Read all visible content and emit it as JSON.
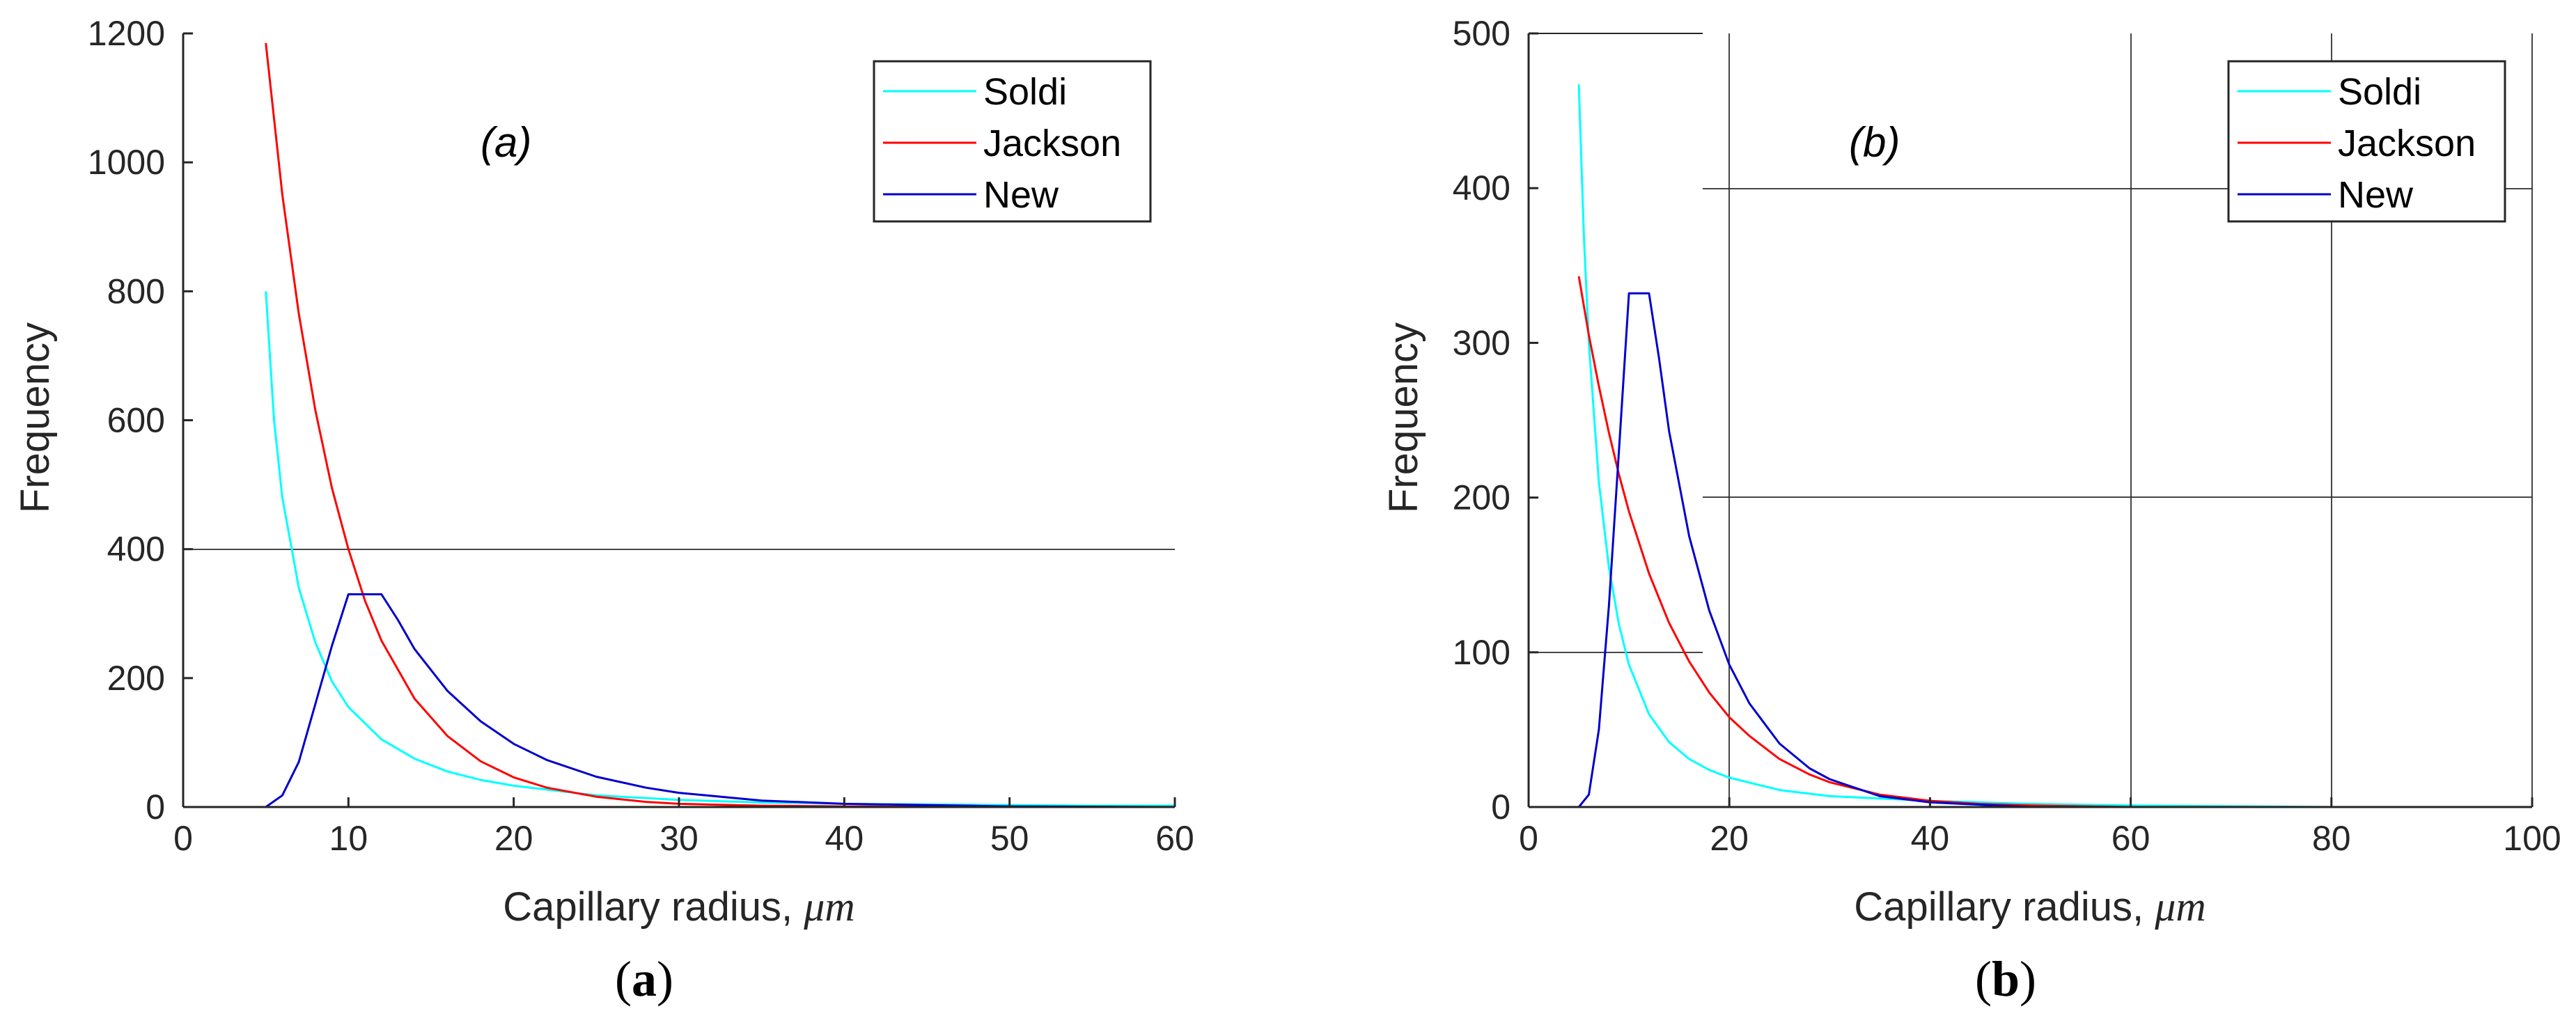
{
  "colors": {
    "Soldi": "#00ffff",
    "Jackson": "#ff0000",
    "New": "#0000cd",
    "axis": "#262626",
    "grid": "#262626"
  },
  "chart_data": [
    {
      "type": "line",
      "panel_label": "(a)",
      "caption": {
        "open": "(",
        "letter": "a",
        "close": ")"
      },
      "xlabel": "Capillary radius,",
      "xlabel_unit": "μm",
      "ylabel": "Frequency",
      "xlim": [
        0,
        60
      ],
      "ylim": [
        0,
        1200
      ],
      "xticks": [
        0,
        10,
        20,
        30,
        40,
        50,
        60
      ],
      "yticks": [
        0,
        200,
        400,
        600,
        800,
        1000,
        1200
      ],
      "legend_position": "top-right",
      "grid": "partial horizontal line at 400",
      "series": [
        {
          "name": "Soldi",
          "x": [
            5,
            5.5,
            6,
            7,
            8,
            9,
            10,
            12,
            14,
            16,
            18,
            20,
            25,
            30,
            35,
            40,
            45,
            50,
            55,
            60
          ],
          "y": [
            800,
            600,
            480,
            340,
            255,
            195,
            155,
            105,
            75,
            55,
            42,
            33,
            18,
            11,
            7,
            5,
            4,
            3,
            2,
            2
          ]
        },
        {
          "name": "Jackson",
          "x": [
            5,
            6,
            7,
            8,
            9,
            10,
            11,
            12,
            14,
            16,
            18,
            20,
            22,
            25,
            28,
            30,
            35,
            40,
            50,
            60
          ],
          "y": [
            1185,
            950,
            765,
            615,
            495,
            400,
            320,
            258,
            168,
            110,
            71,
            46,
            30,
            16,
            8,
            5,
            2,
            1,
            0,
            0
          ]
        },
        {
          "name": "New",
          "x": [
            5,
            6,
            7,
            8,
            9,
            10,
            12,
            13,
            14,
            16,
            18,
            20,
            22,
            25,
            28,
            30,
            35,
            40,
            50,
            60
          ],
          "y": [
            0,
            18,
            70,
            160,
            250,
            330,
            330,
            290,
            245,
            180,
            133,
            98,
            73,
            47,
            30,
            22,
            10,
            5,
            1,
            0
          ]
        }
      ]
    },
    {
      "type": "line",
      "panel_label": "(b)",
      "caption": {
        "open": "(",
        "letter": "b",
        "close": ")"
      },
      "xlabel": "Capillary radius,",
      "xlabel_unit": "μm",
      "ylabel": "Frequency",
      "xlim": [
        0,
        100
      ],
      "ylim": [
        0,
        500
      ],
      "xticks": [
        0,
        20,
        40,
        60,
        80,
        100
      ],
      "yticks": [
        0,
        100,
        200,
        300,
        400,
        500
      ],
      "legend_position": "top-right",
      "grid": "partial grid",
      "series": [
        {
          "name": "Soldi",
          "x": [
            5,
            5.5,
            6,
            7,
            8,
            9,
            10,
            12,
            14,
            16,
            18,
            20,
            25,
            30,
            40,
            50,
            60,
            80,
            100
          ],
          "y": [
            467,
            370,
            300,
            210,
            155,
            118,
            92,
            60,
            42,
            31,
            24,
            19,
            11,
            7,
            4,
            2,
            1,
            0,
            0
          ]
        },
        {
          "name": "Jackson",
          "x": [
            5,
            6,
            7,
            8,
            9,
            10,
            12,
            14,
            16,
            18,
            20,
            22,
            25,
            28,
            30,
            35,
            40,
            45,
            50,
            60,
            80,
            100
          ],
          "y": [
            343,
            305,
            272,
            242,
            215,
            191,
            151,
            119,
            94,
            74,
            58,
            46,
            31,
            21,
            16,
            8,
            4,
            2,
            1,
            0,
            0,
            0
          ]
        },
        {
          "name": "New",
          "x": [
            5,
            6,
            7,
            8,
            9,
            10,
            12,
            13,
            14,
            16,
            18,
            20,
            22,
            25,
            28,
            30,
            35,
            40,
            50,
            60,
            80,
            100
          ],
          "y": [
            0,
            8,
            50,
            130,
            230,
            332,
            332,
            290,
            243,
            175,
            127,
            92,
            67,
            41,
            25,
            18,
            7,
            3,
            0,
            0,
            0,
            0
          ]
        }
      ]
    }
  ]
}
